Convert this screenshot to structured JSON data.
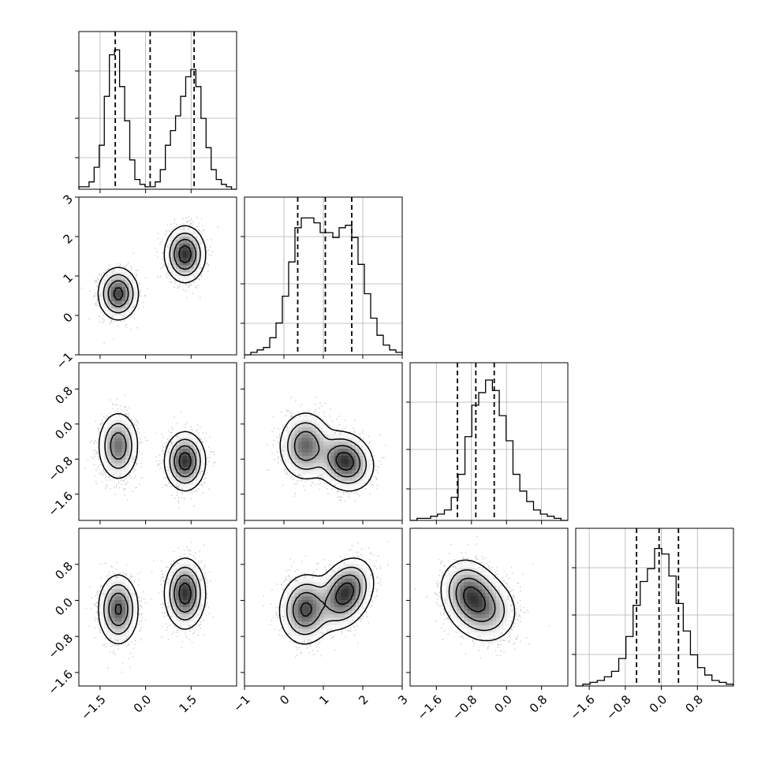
{
  "chart_data": {
    "type": "corner",
    "n_params": 4,
    "grid": true,
    "colors": {
      "ink": "#000000",
      "scatter": "#a0a0a0",
      "grid": "#b0b0b0"
    },
    "params": [
      {
        "range": [
          -2.2,
          3.0
        ],
        "ticks": [
          -1.5,
          0.0,
          1.5
        ],
        "tick_labels": [
          "−1.5",
          "0.0",
          "1.5"
        ],
        "quantiles": [
          -1.0,
          0.15,
          1.6
        ],
        "hist_max": 60,
        "hist": [
          1,
          1,
          3,
          9,
          18,
          38,
          55,
          57,
          42,
          28,
          12,
          4,
          2,
          1,
          1,
          3,
          8,
          18,
          24,
          30,
          38,
          46,
          49,
          42,
          29,
          17,
          8,
          4,
          2,
          1,
          0
        ]
      },
      {
        "range": [
          -1.0,
          3.0
        ],
        "ticks": [
          -1,
          0,
          1,
          2,
          3
        ],
        "tick_labels": [
          "−1",
          "0",
          "1",
          "2",
          "3"
        ],
        "quantiles": [
          0.35,
          1.05,
          1.72
        ],
        "hist_max": 60,
        "hist": [
          0,
          1,
          2,
          3,
          7,
          13,
          24,
          38,
          52,
          56,
          56,
          54,
          50,
          50,
          48,
          52,
          53,
          48,
          37,
          25,
          15,
          8,
          4,
          2,
          1
        ]
      },
      {
        "range": [
          -2.2,
          1.4
        ],
        "ticks": [
          -1.6,
          -0.8,
          0.0,
          0.8
        ],
        "tick_labels": [
          "−1.6",
          "−0.8",
          "0.0",
          "0.8"
        ],
        "quantiles": [
          -1.12,
          -0.7,
          -0.28
        ],
        "hist_max": 70,
        "hist": [
          0,
          1,
          1,
          2,
          3,
          5,
          11,
          22,
          40,
          55,
          61,
          67,
          62,
          50,
          38,
          22,
          14,
          9,
          5,
          3,
          2,
          1,
          0
        ]
      },
      {
        "range": [
          -1.9,
          1.6
        ],
        "ticks": [
          -1.6,
          -0.8,
          0.0,
          0.8
        ],
        "tick_labels": [
          "−1.6",
          "−0.8",
          "0.0",
          "0.8"
        ],
        "quantiles": [
          -0.55,
          -0.05,
          0.38
        ],
        "hist_max": 80,
        "hist": [
          0,
          1,
          2,
          3,
          5,
          8,
          15,
          27,
          44,
          57,
          64,
          75,
          72,
          60,
          45,
          30,
          17,
          10,
          6,
          3,
          2,
          1
        ]
      }
    ],
    "hist_yticks": [
      0.2,
      0.45,
      0.75
    ],
    "components": [
      {
        "weight": 0.46,
        "mean": [
          -0.9,
          0.55,
          -0.5,
          -0.2
        ],
        "sd": [
          0.3,
          0.3,
          0.35,
          0.35
        ]
      },
      {
        "weight": 0.54,
        "mean": [
          1.3,
          1.55,
          -0.85,
          0.15
        ],
        "sd": [
          0.3,
          0.32,
          0.3,
          0.35
        ]
      }
    ],
    "pair_correlation": {
      "comp0": {
        "2_1": 0.0,
        "3_1": 0.05,
        "3_2": -0.1
      },
      "comp1": {
        "2_1": -0.15,
        "3_1": 0.3,
        "3_2": -0.15
      }
    }
  }
}
